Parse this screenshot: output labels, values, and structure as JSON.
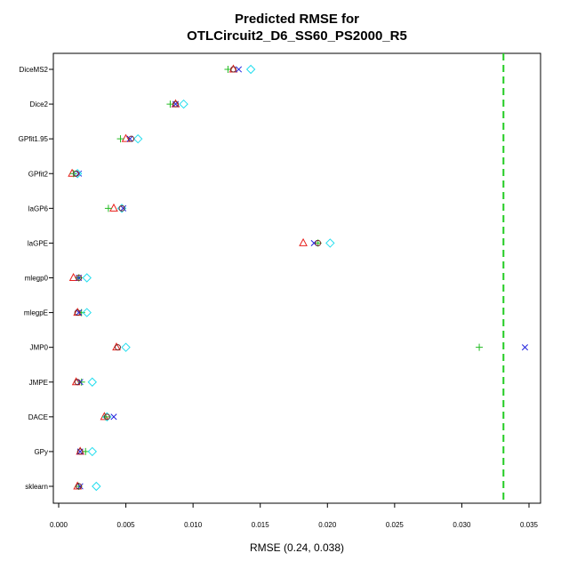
{
  "chart_data": {
    "type": "scatter",
    "title_line1": "Predicted RMSE for",
    "title_line2": "OTLCircuit2_D6_SS60_PS2000_R5",
    "xlabel": "RMSE (0.24, 0.038)",
    "ylabel": "",
    "xlim": [
      0.0,
      0.0355
    ],
    "xticks": [
      0.0,
      0.005,
      0.01,
      0.015,
      0.02,
      0.025,
      0.03,
      0.035
    ],
    "xtick_labels": [
      "0.000",
      "0.005",
      "0.010",
      "0.015",
      "0.020",
      "0.025",
      "0.030",
      "0.035"
    ],
    "grid": false,
    "reference_line": {
      "x": 0.0331,
      "color": "#22cc22",
      "style": "dashed"
    },
    "categories": [
      "DiceMS2",
      "Dice2",
      "GPfit1.95",
      "GPfit2",
      "laGP6",
      "laGPE",
      "mlegp0",
      "mlegpE",
      "JMP0",
      "JMPE",
      "DACE",
      "GPy",
      "sklearn"
    ],
    "series": [
      {
        "marker": "triangle",
        "color": "#e8201c",
        "values": [
          0.013,
          0.0087,
          0.005,
          0.001,
          0.0041,
          0.0182,
          0.0011,
          0.0014,
          0.0043,
          0.0013,
          0.0034,
          0.0016,
          0.0014
        ]
      },
      {
        "marker": "plus",
        "color": "#22bb22",
        "values": [
          0.0126,
          0.0083,
          0.0046,
          0.0011,
          0.0037,
          0.0193,
          0.0015,
          0.0017,
          0.0313,
          0.0017,
          0.0035,
          0.002,
          0.0015
        ]
      },
      {
        "marker": "cross",
        "color": "#2222dd",
        "values": [
          0.0134,
          0.0087,
          0.0053,
          0.0015,
          0.0048,
          0.019,
          0.0015,
          0.0015,
          0.0347,
          0.0016,
          0.0041,
          0.0016,
          0.0016
        ]
      },
      {
        "marker": "diamond",
        "color": "#22ddee",
        "values": [
          0.0143,
          0.0093,
          0.0059,
          0.0014,
          0.0047,
          0.0202,
          0.0021,
          0.0021,
          0.005,
          0.0025,
          0.0036,
          0.0025,
          0.0028
        ]
      },
      {
        "marker": "circle",
        "color": "#7a2a2a",
        "values": [
          0.013,
          0.0087,
          0.0054,
          0.0013,
          0.0047,
          0.0193,
          0.0015,
          0.0014,
          0.0044,
          0.0014,
          0.0036,
          0.0016,
          0.0015
        ]
      }
    ]
  }
}
